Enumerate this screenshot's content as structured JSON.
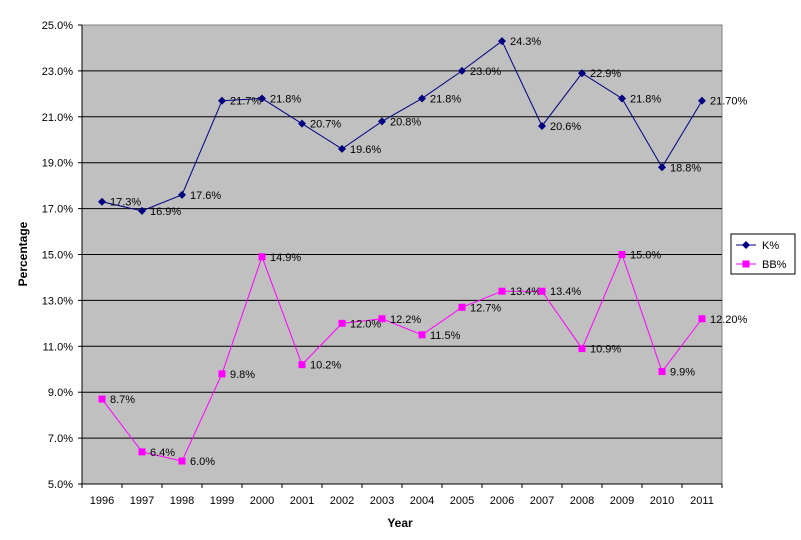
{
  "chart_data": {
    "type": "line",
    "title": "",
    "xlabel": "Year",
    "ylabel": "Percentage",
    "ylim": [
      5.0,
      25.0
    ],
    "yticks": [
      "5.0%",
      "7.0%",
      "9.0%",
      "11.0%",
      "13.0%",
      "15.0%",
      "17.0%",
      "19.0%",
      "21.0%",
      "23.0%",
      "25.0%"
    ],
    "grid": "horizontal",
    "legend_position": "right",
    "x": [
      "1996",
      "1997",
      "1998",
      "1999",
      "2000",
      "2001",
      "2002",
      "2003",
      "2004",
      "2005",
      "2006",
      "2007",
      "2008",
      "2009",
      "2010",
      "2011"
    ],
    "series": [
      {
        "name": "K%",
        "color": "#000080",
        "marker": "diamond",
        "values": [
          17.3,
          16.9,
          17.6,
          21.7,
          21.8,
          20.7,
          19.6,
          20.8,
          21.8,
          23.0,
          24.3,
          20.6,
          22.9,
          21.8,
          18.8,
          21.7
        ],
        "labels": [
          "17.3%",
          "16.9%",
          "17.6%",
          "21.7%",
          "21.8%",
          "20.7%",
          "19.6%",
          "20.8%",
          "21.8%",
          "23.0%",
          "24.3%",
          "20.6%",
          "22.9%",
          "21.8%",
          "18.8%",
          "21.70%"
        ]
      },
      {
        "name": "BB%",
        "color": "#FF00FF",
        "marker": "square",
        "values": [
          8.7,
          6.4,
          6.0,
          9.8,
          14.9,
          10.2,
          12.0,
          12.2,
          11.5,
          12.7,
          13.4,
          13.4,
          10.9,
          15.0,
          9.9,
          12.2
        ],
        "labels": [
          "8.7%",
          "6.4%",
          "6.0%",
          "9.8%",
          "14.9%",
          "10.2%",
          "12.0%",
          "12.2%",
          "11.5%",
          "12.7%",
          "13.4%",
          "13.4%",
          "10.9%",
          "15.0%",
          "9.9%",
          "12.20%"
        ]
      }
    ],
    "colors": {
      "plot_background": "#C0C0C0",
      "gridline": "#000000",
      "chart_background": "#FFFFFF"
    }
  }
}
